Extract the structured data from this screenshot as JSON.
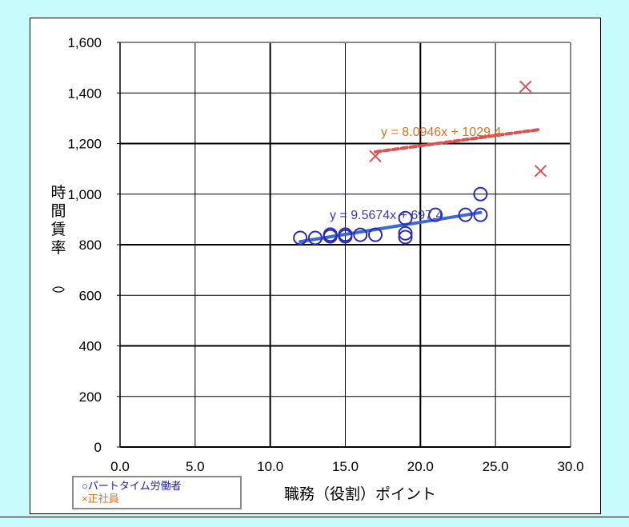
{
  "chart_data": {
    "type": "scatter",
    "title": "",
    "xlabel": "職務（役割）ポイント",
    "ylabel": "時間賃率（）",
    "ylabel_chars": [
      "時",
      "間",
      "賃",
      "率"
    ],
    "ylabel_paren": "︵︶",
    "xlim": [
      0,
      30
    ],
    "ylim": [
      0,
      1600
    ],
    "x_ticks": [
      "0.0",
      "5.0",
      "10.0",
      "15.0",
      "20.0",
      "25.0",
      "30.0"
    ],
    "y_ticks": [
      "0",
      "200",
      "400",
      "600",
      "800",
      "1,000",
      "1,200",
      "1,400",
      "1,600"
    ],
    "grid": true,
    "legend_position": "bottom-left",
    "legend": [
      "○パートタイム労働者",
      "×正社員"
    ],
    "series": [
      {
        "name": "パートタイム労働者",
        "marker": "circle",
        "color": "#2b2bb8",
        "points": [
          [
            12.0,
            827
          ],
          [
            13.0,
            827
          ],
          [
            14.0,
            833
          ],
          [
            14.0,
            840
          ],
          [
            15.0,
            833
          ],
          [
            15.0,
            840
          ],
          [
            16.0,
            839
          ],
          [
            17.0,
            839
          ],
          [
            19.0,
            830
          ],
          [
            19.0,
            845
          ],
          [
            19.0,
            905
          ],
          [
            21.0,
            918
          ],
          [
            23.0,
            918
          ],
          [
            24.0,
            918
          ],
          [
            24.0,
            1000
          ]
        ],
        "trendline": {
          "slope": 9.5674,
          "intercept": 697.4,
          "x_range": [
            12.0,
            24.0
          ],
          "label": "y = 9.5674x + 697.4",
          "color": "#3a6ad8"
        }
      },
      {
        "name": "正社員",
        "marker": "x",
        "color": "#e05050",
        "points": [
          [
            17.0,
            1150
          ],
          [
            27.0,
            1425
          ],
          [
            28.0,
            1092
          ]
        ],
        "trendline": {
          "slope": 8.0946,
          "intercept": 1029.4,
          "x_range": [
            17.0,
            28.0
          ],
          "label": "y = 8.0946x + 1029.4",
          "color": "#e05050",
          "label_color": "#e07020",
          "style": "dashed"
        }
      }
    ]
  },
  "colors": {
    "background": "#c8fcfc",
    "part_time": "#2b2bb8",
    "regular": "#e05050",
    "regular_label": "#e07020"
  }
}
